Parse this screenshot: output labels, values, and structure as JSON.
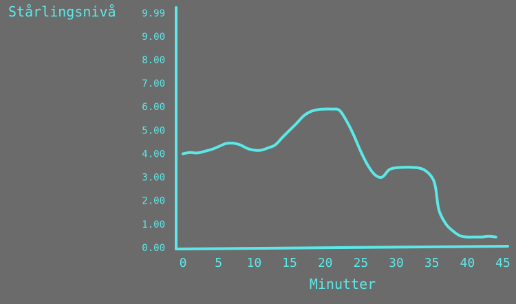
{
  "chart_data": {
    "type": "line",
    "title": "",
    "ylabel": "Stårlingsnivå",
    "xlabel": "Minutter",
    "xlim": [
      0,
      45
    ],
    "ylim": [
      0,
      9.99
    ],
    "x_ticks": [
      "0",
      "5",
      "10",
      "15",
      "20",
      "25",
      "30",
      "35",
      "40",
      "45"
    ],
    "y_ticks": [
      "0.00",
      "1.00",
      "2.00",
      "3.00",
      "4.00",
      "5.00",
      "6.00",
      "7.00",
      "8.00",
      "9.00",
      "9.99"
    ],
    "grid": false,
    "legend": "none",
    "series": [
      {
        "x": [
          0,
          1,
          2,
          3,
          4,
          5,
          6,
          7,
          8,
          9,
          10,
          11,
          12,
          13,
          14,
          15,
          16,
          17,
          18,
          19,
          20,
          21,
          22,
          23,
          24,
          25,
          26,
          27,
          28,
          29,
          30,
          31,
          32,
          33,
          34,
          35,
          35.5,
          36,
          37,
          38,
          39,
          40,
          41,
          42,
          43,
          44
        ],
        "values": [
          4.0,
          4.05,
          4.03,
          4.1,
          4.18,
          4.3,
          4.43,
          4.45,
          4.38,
          4.23,
          4.15,
          4.15,
          4.25,
          4.38,
          4.7,
          5.0,
          5.3,
          5.62,
          5.8,
          5.88,
          5.9,
          5.9,
          5.85,
          5.4,
          4.8,
          4.1,
          3.5,
          3.1,
          3.0,
          3.32,
          3.4,
          3.42,
          3.42,
          3.4,
          3.3,
          3.0,
          2.6,
          1.6,
          1.0,
          0.7,
          0.5,
          0.45,
          0.45,
          0.45,
          0.48,
          0.45
        ]
      }
    ],
    "colors": {
      "background": "#6b6b6b",
      "line": "#5ce8e8",
      "text": "#5ce8e8"
    }
  }
}
